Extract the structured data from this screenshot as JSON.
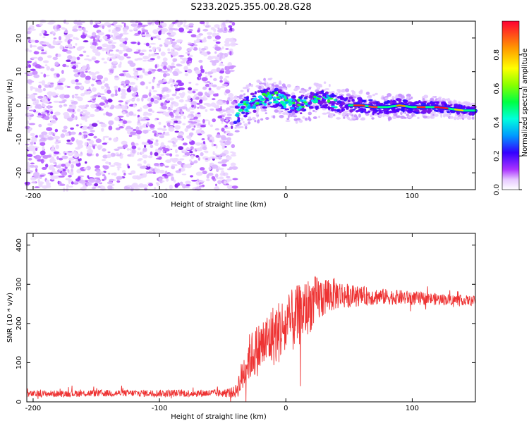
{
  "title": "S233.2025.355.00.28.G28",
  "chart_data": [
    {
      "type": "heatmap",
      "xlabel": "Height of straight line (km)",
      "ylabel": "Frequency (Hz)",
      "xlim": [
        -205,
        150
      ],
      "ylim": [
        -25,
        25
      ],
      "xticks": [
        -200,
        -100,
        0,
        100
      ],
      "yticks": [
        -20,
        -10,
        0,
        10,
        20
      ],
      "colorbar": {
        "label": "Normalized spectral amplitude",
        "range": [
          0,
          1
        ],
        "ticks": [
          0.0,
          0.2,
          0.4,
          0.6,
          0.8
        ]
      },
      "noise_region": {
        "x": [
          -205,
          -40
        ],
        "y": [
          -25,
          25
        ]
      },
      "signal_ridge": {
        "x": [
          -40,
          -30,
          -20,
          -10,
          0,
          10,
          20,
          30,
          40,
          50,
          60,
          70,
          80,
          90,
          100,
          110,
          120,
          130,
          140,
          150
        ],
        "y": [
          -2,
          0,
          1.5,
          2.5,
          1,
          0,
          1,
          2,
          0.5,
          0,
          0,
          -0.5,
          -0.5,
          0,
          -0.5,
          -0.5,
          -0.5,
          -1,
          -1.5,
          -1.5
        ]
      }
    },
    {
      "type": "line",
      "xlabel": "Height of straight line (km)",
      "ylabel": "SNR (10 * v/v)",
      "xlim": [
        -205,
        150
      ],
      "ylim": [
        0,
        430
      ],
      "xticks": [
        -200,
        -100,
        0,
        100
      ],
      "yticks": [
        0,
        100,
        200,
        300,
        400
      ],
      "color": "#ee3333",
      "envelope": {
        "x": [
          -205,
          -150,
          -100,
          -50,
          -40,
          -35,
          -30,
          -20,
          -10,
          0,
          10,
          20,
          30,
          40,
          50,
          60,
          80,
          100,
          120,
          150
        ],
        "mean": [
          20,
          22,
          22,
          22,
          25,
          60,
          110,
          140,
          170,
          190,
          220,
          250,
          270,
          275,
          270,
          270,
          268,
          265,
          262,
          258
        ],
        "spread": [
          8,
          9,
          9,
          10,
          15,
          45,
          60,
          70,
          80,
          85,
          80,
          70,
          55,
          40,
          30,
          25,
          20,
          18,
          15,
          12
        ]
      }
    }
  ]
}
